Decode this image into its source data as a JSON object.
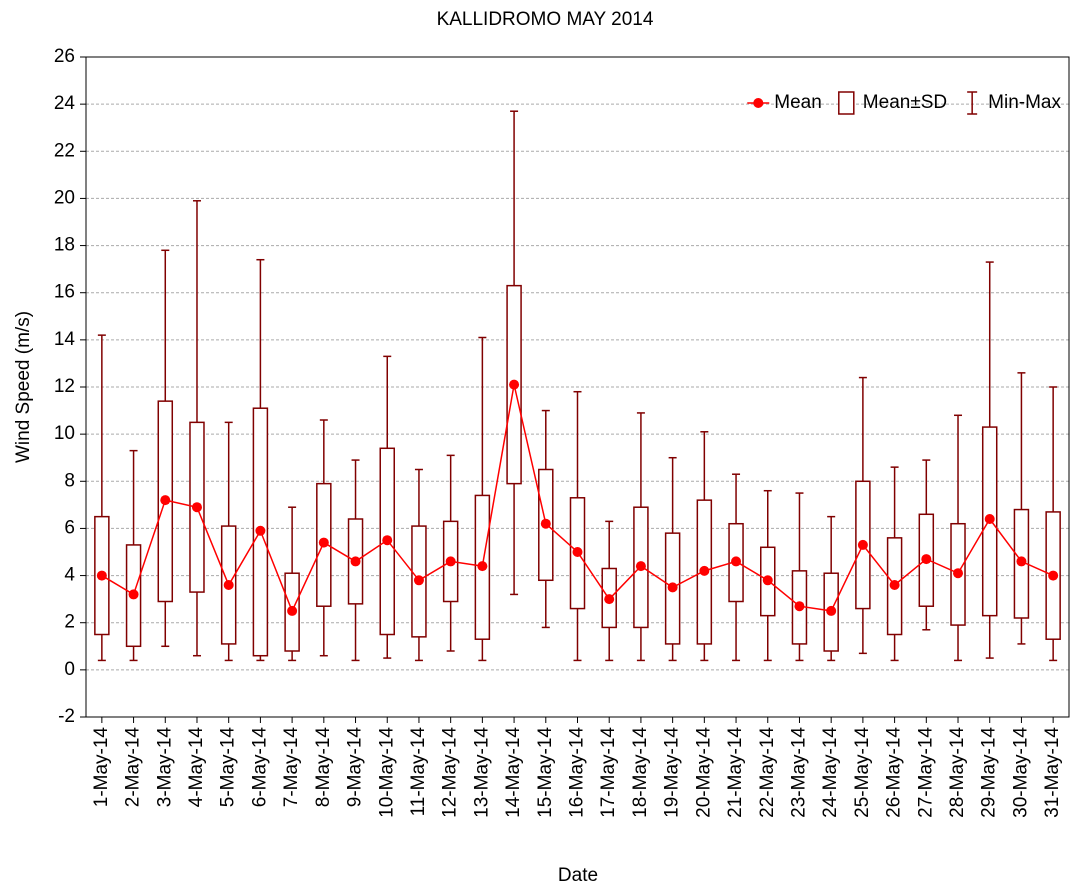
{
  "chart_data": {
    "type": "box",
    "title": "KALLIDROMO MAY 2014",
    "x_label": "Date",
    "y_label": "Wind Speed (m/s)",
    "categories": [
      "1-May-14",
      "2-May-14",
      "3-May-14",
      "4-May-14",
      "5-May-14",
      "6-May-14",
      "7-May-14",
      "8-May-14",
      "9-May-14",
      "10-May-14",
      "11-May-14",
      "12-May-14",
      "13-May-14",
      "14-May-14",
      "15-May-14",
      "16-May-14",
      "17-May-14",
      "18-May-14",
      "19-May-14",
      "20-May-14",
      "21-May-14",
      "22-May-14",
      "23-May-14",
      "24-May-14",
      "25-May-14",
      "26-May-14",
      "27-May-14",
      "28-May-14",
      "29-May-14",
      "30-May-14",
      "31-May-14"
    ],
    "series": [
      {
        "name": "Mean",
        "color": "#ff0000",
        "values": [
          4.0,
          3.2,
          7.2,
          6.9,
          3.6,
          5.9,
          2.5,
          5.4,
          4.6,
          5.5,
          3.8,
          4.6,
          4.4,
          12.1,
          6.2,
          5.0,
          3.0,
          4.4,
          3.5,
          4.2,
          4.6,
          3.8,
          2.7,
          2.5,
          5.3,
          3.6,
          4.7,
          4.1,
          6.4,
          4.6,
          4.0
        ]
      },
      {
        "name": "Mean±SD",
        "color": "#800000",
        "low": [
          1.5,
          1.0,
          2.9,
          3.3,
          1.1,
          0.6,
          0.8,
          2.7,
          2.8,
          1.5,
          1.4,
          2.9,
          1.3,
          7.9,
          3.8,
          2.6,
          1.8,
          1.8,
          1.1,
          1.1,
          2.9,
          2.3,
          1.1,
          0.8,
          2.6,
          1.5,
          2.7,
          1.9,
          2.3,
          2.2,
          1.3
        ],
        "high": [
          6.5,
          5.3,
          11.4,
          10.5,
          6.1,
          11.1,
          4.1,
          7.9,
          6.4,
          9.4,
          6.1,
          6.3,
          7.4,
          16.3,
          8.5,
          7.3,
          4.3,
          6.9,
          5.8,
          7.2,
          6.2,
          5.2,
          4.2,
          4.1,
          8.0,
          5.6,
          6.6,
          6.2,
          10.3,
          6.8,
          6.7
        ]
      },
      {
        "name": "Min-Max",
        "color": "#800000",
        "min": [
          0.4,
          0.4,
          1.0,
          0.6,
          0.4,
          0.4,
          0.4,
          0.6,
          0.4,
          0.5,
          0.4,
          0.8,
          0.4,
          3.2,
          1.8,
          0.4,
          0.4,
          0.4,
          0.4,
          0.4,
          0.4,
          0.4,
          0.4,
          0.4,
          0.7,
          0.4,
          1.7,
          0.4,
          0.5,
          1.1,
          0.4
        ],
        "max": [
          14.2,
          9.3,
          17.8,
          19.9,
          10.5,
          17.4,
          6.9,
          10.6,
          8.9,
          13.3,
          8.5,
          9.1,
          14.1,
          23.7,
          11.0,
          11.8,
          6.3,
          10.9,
          9.0,
          10.1,
          8.3,
          7.6,
          7.5,
          6.5,
          12.4,
          8.6,
          8.9,
          10.8,
          17.3,
          12.6,
          12.0
        ]
      }
    ],
    "ylim": [
      -2,
      26
    ],
    "yticks": [
      -2,
      0,
      2,
      4,
      6,
      8,
      10,
      12,
      14,
      16,
      18,
      20,
      22,
      24,
      26
    ],
    "grid": true,
    "legend": "top-right"
  }
}
